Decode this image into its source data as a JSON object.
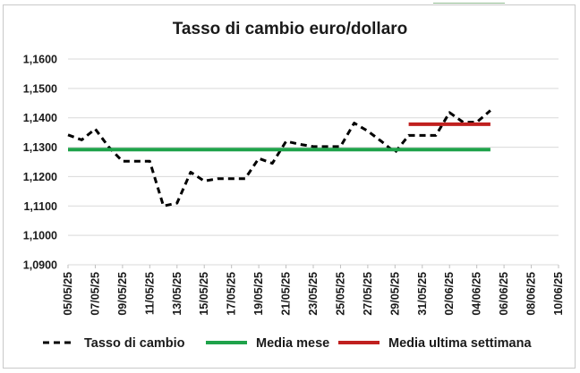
{
  "chart_data": {
    "type": "line",
    "title": "Tasso di cambio euro/dollaro",
    "xlabel": "",
    "ylabel": "",
    "ylim": [
      1.09,
      1.16
    ],
    "yticks": [
      "1,0900",
      "1,1000",
      "1,1100",
      "1,1200",
      "1,1300",
      "1,1400",
      "1,1500",
      "1,1600"
    ],
    "ytick_values": [
      1.09,
      1.1,
      1.11,
      1.12,
      1.13,
      1.14,
      1.15,
      1.16
    ],
    "xlim": [
      "2025-05-05",
      "2025-06-10"
    ],
    "xticks": [
      "05/05/25",
      "07/05/25",
      "09/05/25",
      "11/05/25",
      "13/05/25",
      "15/05/25",
      "17/05/25",
      "19/05/25",
      "21/05/25",
      "23/05/25",
      "25/05/25",
      "27/05/25",
      "29/05/25",
      "31/05/25",
      "02/06/25",
      "04/06/25",
      "06/06/25",
      "08/06/25",
      "10/06/25"
    ],
    "grid": true,
    "legend": "bottom",
    "series": [
      {
        "name": "Tasso di cambio",
        "color": "#000000",
        "style": "dashed",
        "x": [
          "2025-05-05",
          "2025-05-06",
          "2025-05-07",
          "2025-05-08",
          "2025-05-09",
          "2025-05-10",
          "2025-05-11",
          "2025-05-12",
          "2025-05-13",
          "2025-05-14",
          "2025-05-15",
          "2025-05-16",
          "2025-05-17",
          "2025-05-18",
          "2025-05-19",
          "2025-05-20",
          "2025-05-21",
          "2025-05-22",
          "2025-05-23",
          "2025-05-24",
          "2025-05-25",
          "2025-05-26",
          "2025-05-27",
          "2025-05-28",
          "2025-05-29",
          "2025-05-30",
          "2025-05-31",
          "2025-06-01",
          "2025-06-02",
          "2025-06-03",
          "2025-06-04",
          "2025-06-05"
        ],
        "values": [
          1.1342,
          1.1325,
          1.1362,
          1.13,
          1.1252,
          1.1252,
          1.1252,
          1.11,
          1.111,
          1.1215,
          1.1185,
          1.1193,
          1.1193,
          1.1193,
          1.1262,
          1.1245,
          1.132,
          1.131,
          1.1302,
          1.1302,
          1.1302,
          1.1382,
          1.1355,
          1.132,
          1.1282,
          1.134,
          1.134,
          1.134,
          1.1418,
          1.1385,
          1.1385,
          1.1425
        ]
      },
      {
        "name": "Media mese",
        "color": "#1fa24a",
        "style": "solid",
        "x": [
          "2025-05-05",
          "2025-06-05"
        ],
        "values": [
          1.1292,
          1.1292
        ]
      },
      {
        "name": "Media ultima settimana",
        "color": "#c0201f",
        "style": "solid",
        "x": [
          "2025-05-30",
          "2025-06-05"
        ],
        "values": [
          1.1378,
          1.1378
        ]
      }
    ]
  }
}
